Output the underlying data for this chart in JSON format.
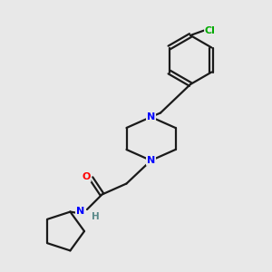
{
  "background_color": "#e8e8e8",
  "bond_color": "#1a1a1a",
  "N_color": "#0000ff",
  "O_color": "#ff0000",
  "Cl_color": "#00aa00",
  "H_color": "#5a8a8a",
  "line_width": 1.6,
  "figsize": [
    3.0,
    3.0
  ],
  "dpi": 100,
  "xlim": [
    0,
    10
  ],
  "ylim": [
    0,
    10
  ]
}
